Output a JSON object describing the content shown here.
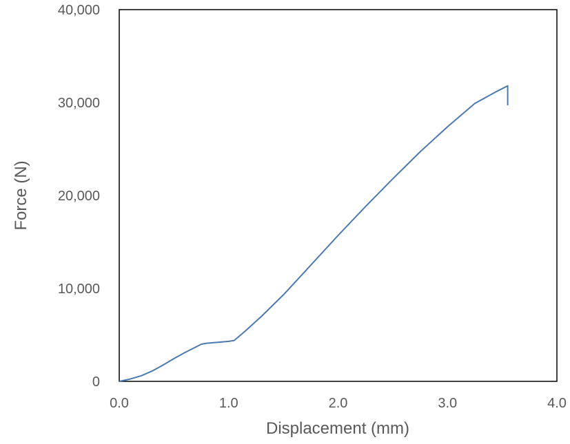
{
  "chart_data": {
    "type": "line",
    "title": "",
    "xlabel": "Displacement (mm)",
    "ylabel": "Force (N)",
    "xlim": [
      0,
      4
    ],
    "ylim": [
      0,
      40000
    ],
    "grid": false,
    "legend": "none",
    "x_ticks": [
      "0.0",
      "1.0",
      "2.0",
      "3.0",
      "4.0"
    ],
    "y_ticks": [
      "0",
      "10,000",
      "20,000",
      "30,000",
      "40,000"
    ],
    "line_color": "#4a78b4",
    "series": [
      {
        "x": [
          0.0,
          0.1,
          0.2,
          0.3,
          0.4,
          0.5,
          0.6,
          0.7,
          0.75,
          0.8,
          0.9,
          1.0,
          1.05,
          1.15,
          1.3,
          1.5,
          1.75,
          2.0,
          2.25,
          2.5,
          2.75,
          3.0,
          3.25,
          3.45,
          3.55,
          3.55
        ],
        "y": [
          0,
          250,
          600,
          1100,
          1750,
          2450,
          3100,
          3700,
          4000,
          4100,
          4200,
          4300,
          4400,
          5400,
          7000,
          9300,
          12500,
          15700,
          18800,
          21800,
          24700,
          27400,
          29900,
          31200,
          31800,
          29700
        ]
      }
    ]
  }
}
